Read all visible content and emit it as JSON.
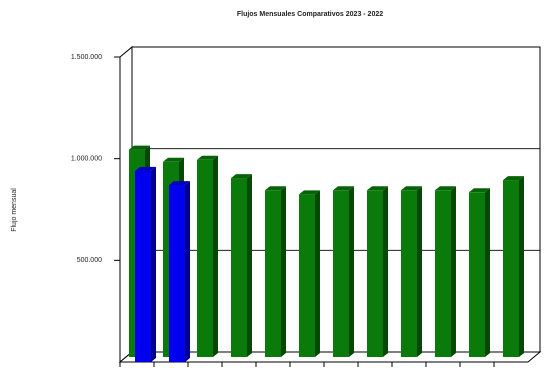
{
  "chart_data": {
    "type": "bar3d",
    "title": "Flujos Mensuales Comparativos 2023 - 2022",
    "y_label": "Flujo mensual",
    "categories": [
      null,
      null,
      null,
      null,
      null,
      null,
      null,
      null,
      null,
      null,
      null,
      null
    ],
    "series": [
      {
        "color": "#0a7a0a",
        "values": [
          1020000,
          960000,
          970000,
          880000,
          820000,
          800000,
          820000,
          820000,
          820000,
          820000,
          810000,
          870000
        ]
      },
      {
        "color": "#0000ee",
        "values": [
          940000,
          870000,
          null,
          null,
          null,
          null,
          null,
          null,
          null,
          null,
          null,
          null
        ]
      }
    ],
    "ylim": [
      0,
      1500000
    ],
    "yticks": [
      {
        "value": 500000,
        "label": "500.000"
      },
      {
        "value": 1000000,
        "label": "1.000.000"
      },
      {
        "value": 1500000,
        "label": "1.500.000"
      }
    ],
    "grid": true
  }
}
